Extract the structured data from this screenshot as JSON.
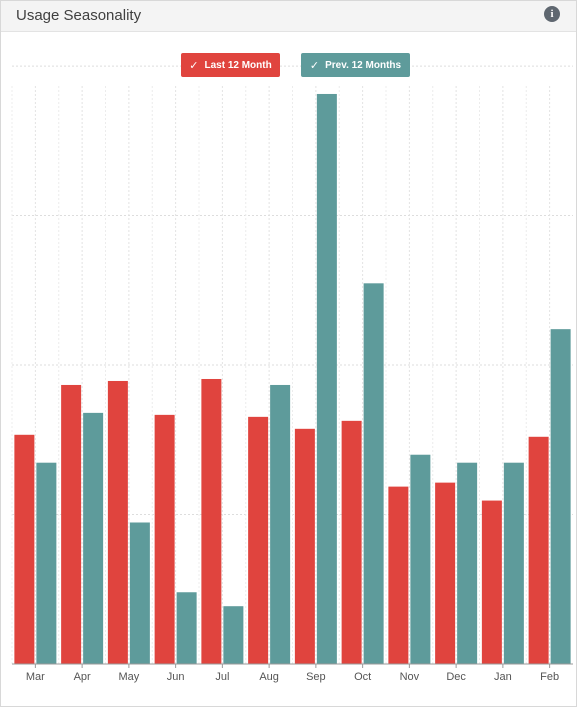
{
  "panel": {
    "title": "Usage Seasonality",
    "info_icon": "info-circle-icon",
    "check_icon": "check-icon"
  },
  "legend": [
    {
      "label": "Last 12 Month",
      "color": "#e0443e"
    },
    {
      "label": "Prev. 12 Months",
      "color": "#5e9b9b"
    }
  ],
  "chart_data": {
    "type": "bar",
    "categories": [
      "Mar",
      "Apr",
      "May",
      "Jun",
      "Jul",
      "Aug",
      "Sep",
      "Oct",
      "Nov",
      "Dec",
      "Jan",
      "Feb"
    ],
    "series": [
      {
        "name": "Last 12 Month",
        "color": "#e0443e",
        "values": [
          5.75,
          7.0,
          7.1,
          6.25,
          7.15,
          6.2,
          5.9,
          6.1,
          4.45,
          4.55,
          4.1,
          5.7
        ]
      },
      {
        "name": "Prev. 12 Months",
        "color": "#5e9b9b",
        "values": [
          5.05,
          6.3,
          3.55,
          1.8,
          1.45,
          7.0,
          14.3,
          9.55,
          5.25,
          5.05,
          5.05,
          8.4
        ]
      }
    ],
    "ylim": [
      0,
      14.5
    ],
    "y_gridlines": [
      3.75,
      7.5,
      11.25,
      15
    ],
    "grid": true,
    "legend_position": "top-center"
  }
}
